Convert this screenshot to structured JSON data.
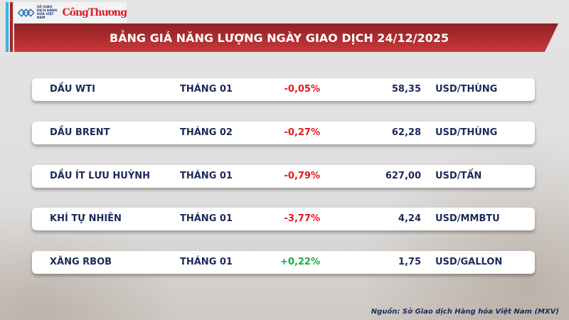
{
  "header": {
    "logo_sgd": "SỞ GIAO DỊCH HÀNG HÓA VIỆT NAM",
    "logo_ct": "CôngThương",
    "title": "BẢNG GIÁ NĂNG LƯỢNG NGÀY GIAO DỊCH 24/12/2025"
  },
  "colors": {
    "negative": "#e8161c",
    "positive": "#1aa84a",
    "title_bar": "#b0302f",
    "text": "#1c2a5a"
  },
  "rows": [
    {
      "name": "DẦU WTI",
      "month": "THÁNG 01",
      "change": "-0,05%",
      "price": "58,35",
      "unit": "USD/THÙNG",
      "dir": "neg"
    },
    {
      "name": "DẦU BRENT",
      "month": "THÁNG 02",
      "change": "-0,27%",
      "price": "62,28",
      "unit": "USD/THÙNG",
      "dir": "neg"
    },
    {
      "name": "DẦU ÍT LƯU HUỲNH",
      "month": "THÁNG 01",
      "change": "-0,79%",
      "price": "627,00",
      "unit": "USD/TẤN",
      "dir": "neg"
    },
    {
      "name": "KHÍ TỰ NHIÊN",
      "month": "THÁNG 01",
      "change": "-3,77%",
      "price": "4,24",
      "unit": "USD/MMBTU",
      "dir": "neg"
    },
    {
      "name": "XĂNG RBOB",
      "month": "THÁNG 01",
      "change": "+0,22%",
      "price": "1,75",
      "unit": "USD/GALLON",
      "dir": "pos"
    }
  ],
  "source": "Nguồn: Sở Giao dịch Hàng hóa Việt Nam (MXV)"
}
